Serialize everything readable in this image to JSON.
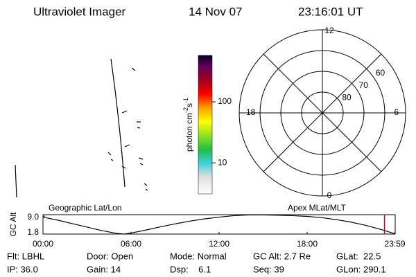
{
  "header": {
    "instrument": "Ultraviolet Imager",
    "date": "14 Nov 07",
    "time": "23:16:01 UT"
  },
  "colorbar": {
    "label_parts": [
      "photon cm",
      "-2",
      "s",
      "-1"
    ],
    "log": true,
    "lim": [
      3.1,
      577
    ],
    "ticks": [
      10,
      100
    ]
  },
  "polar": {
    "lat_lim": [
      50,
      90
    ],
    "lat_ticks": [
      60,
      70,
      80
    ],
    "mlt_ticks": [
      12,
      6,
      0,
      18
    ]
  },
  "chart_data": {
    "type": "line",
    "left_label": "Geographic Lat/Lon",
    "right_label": "Apex MLat/MLT",
    "y_label": "GC Alt",
    "x": [
      0,
      1,
      2,
      3,
      4,
      5,
      5.5,
      6,
      7,
      8,
      9,
      10,
      11,
      12,
      13,
      14,
      15,
      16,
      17,
      18,
      19,
      20,
      21,
      22,
      23,
      24
    ],
    "series": [
      {
        "name": "GC Alt",
        "color": "#000000",
        "values": [
          8.6,
          7.4,
          6.0,
          4.6,
          3.2,
          2.1,
          1.8,
          2.2,
          3.4,
          4.7,
          5.9,
          7.0,
          7.9,
          8.6,
          9.2,
          9.5,
          9.5,
          9.4,
          9.2,
          8.9,
          8.4,
          7.6,
          6.6,
          5.3,
          3.7,
          1.9
        ]
      }
    ],
    "marker_x": 23.27,
    "marker_color": "#d00000",
    "xlim": [
      0,
      24
    ],
    "xticks": [
      {
        "value": 0,
        "label": "00:00"
      },
      {
        "value": 6,
        "label": "06:00"
      },
      {
        "value": 12,
        "label": "12:00"
      },
      {
        "value": 18,
        "label": "18:00"
      },
      {
        "value": 23.98,
        "label": "23:59"
      }
    ],
    "ylim": [
      1.8,
      9.6
    ],
    "yticks": [
      {
        "value": 1.8,
        "label": "1.8"
      },
      {
        "value": 9.0,
        "label": "9.0"
      }
    ]
  },
  "footer": {
    "rows": [
      [
        "Flt: LBHL",
        "Door: Open",
        "Mode: Normal",
        "GC Alt: 2.7 Re",
        "GLat:  22.5"
      ],
      [
        "IP: 36.0",
        "Gain: 14",
        "Dsp:    6.1",
        "Seq: 39",
        "GLon: 290.1"
      ]
    ]
  }
}
